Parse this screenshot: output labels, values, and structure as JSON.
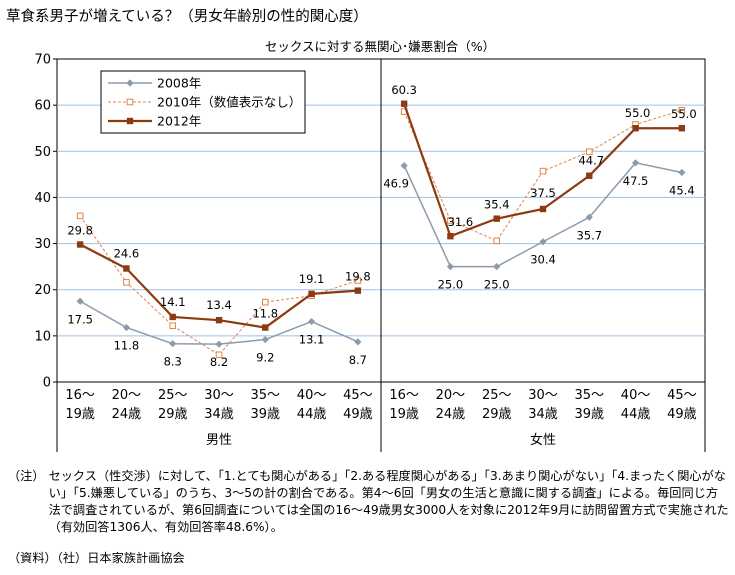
{
  "title": "草食系男子が増えている？（男女年齢別の性的関心度）",
  "chart_data": {
    "type": "line",
    "subtitle": "セックスに対する無関心･嫌悪割合（%）",
    "ylim": [
      0,
      70
    ],
    "yticks": [
      0,
      10,
      20,
      30,
      40,
      50,
      60,
      70
    ],
    "grid": true,
    "legend_position": "top-left",
    "categories": [
      "16～\n19歳",
      "20～\n24歳",
      "25～\n29歳",
      "30～\n34歳",
      "35～\n39歳",
      "40～\n44歳",
      "45～\n49歳"
    ],
    "groups": [
      {
        "label": "男性",
        "series": [
          {
            "name": "2008年",
            "values": [
              17.5,
              11.8,
              8.3,
              8.2,
              9.2,
              13.1,
              8.7
            ],
            "color": "#8C9BAB",
            "labeled": true
          },
          {
            "name": "2010年（数値表示なし）",
            "values": [
              36.0,
              21.6,
              12.2,
              5.9,
              17.3,
              18.7,
              22.0
            ],
            "color": "#E0844A",
            "labeled": false
          },
          {
            "name": "2012年",
            "values": [
              29.8,
              24.6,
              14.1,
              13.4,
              11.8,
              19.1,
              19.8
            ],
            "color": "#8B3A12",
            "labeled": true
          }
        ]
      },
      {
        "label": "女性",
        "series": [
          {
            "name": "2008年",
            "values": [
              46.9,
              25.0,
              25.0,
              30.4,
              35.7,
              47.5,
              45.4
            ],
            "color": "#8C9BAB",
            "labeled": true
          },
          {
            "name": "2010年（数値表示なし）",
            "values": [
              58.6,
              35.0,
              30.6,
              45.7,
              49.9,
              55.8,
              58.9
            ],
            "color": "#E0844A",
            "labeled": false
          },
          {
            "name": "2012年",
            "values": [
              60.3,
              31.6,
              35.4,
              37.5,
              44.7,
              55.0,
              55.0
            ],
            "color": "#8B3A12",
            "labeled": true
          }
        ]
      }
    ]
  },
  "notes": {
    "tag": "（注）",
    "text": "セックス（性交渉）に対して、「1.とても関心がある」「2.ある程度関心がある」「3.あまり関心がない」「4.まったく関心がない」「5.嫌悪している」のうち、3～5の計の割合である。第4～6回「男女の生活と意識に関する調査」による。毎回同じ方法で調査されているが、第6回調査については全国の16～49歳男女3000人を対象に2012年9月に訪問留置方式で実施された（有効回答1306人、有効回答率48.6%）。"
  },
  "source": "（資料）（社）日本家族計画協会"
}
